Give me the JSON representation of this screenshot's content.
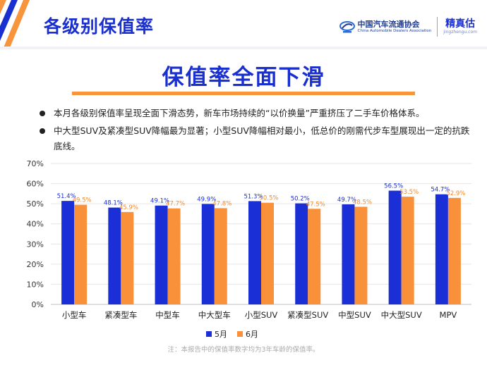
{
  "header": {
    "title": "各级别保值率",
    "association_name": "中国汽车流通协会",
    "association_name_en": "China Automobile Dealers Association",
    "brand_name": "精真估",
    "brand_url": "jingzhengu.com"
  },
  "main_title": "保值率全面下滑",
  "bullets": [
    "本月各级别保值率呈现全面下滑态势，新车市场持续的“以价换量”严重挤压了二手车价格体系。",
    "中大型SUV及紧凑型SUV降幅最为显著；小型SUV降幅相对最小，低总价的刚需代步车型展现出一定的抗跌底线。"
  ],
  "footnote": "注：本报告中的保值率数字均为3年车龄的保值率。",
  "colors": {
    "accent_blue": "#1a2fd0",
    "orange": "#f7943c",
    "series_may": "#1b2fd6",
    "series_june": "#f8913a"
  },
  "chart_data": {
    "type": "bar",
    "categories": [
      "小型车",
      "紧凑型车",
      "中型车",
      "中大型车",
      "小型SUV",
      "紧凑型SUV",
      "中型SUV",
      "中大型SUV",
      "MPV"
    ],
    "series": [
      {
        "name": "5月",
        "values": [
          51.4,
          48.1,
          49.1,
          49.9,
          51.3,
          50.2,
          49.7,
          56.5,
          54.7
        ],
        "labels": [
          "51.4%",
          "48.1%",
          "49.1%",
          "49.9%",
          "51.3%",
          "50.2%",
          "49.7%",
          "56.5%",
          "54.7%"
        ]
      },
      {
        "name": "6月",
        "values": [
          49.5,
          45.9,
          47.7,
          47.8,
          50.5,
          47.5,
          48.5,
          53.5,
          52.9
        ],
        "labels": [
          "49.5%",
          "45.9%",
          "47.7%",
          "47.8%",
          "50.5%",
          "47.5%",
          "48.5%",
          "53.5%",
          "52.9%"
        ]
      }
    ],
    "y_ticks": [
      "0%",
      "10%",
      "20%",
      "30%",
      "40%",
      "50%",
      "60%",
      "70%"
    ],
    "ylim": [
      0,
      70
    ],
    "grid": true,
    "legend": "bottom-center"
  }
}
